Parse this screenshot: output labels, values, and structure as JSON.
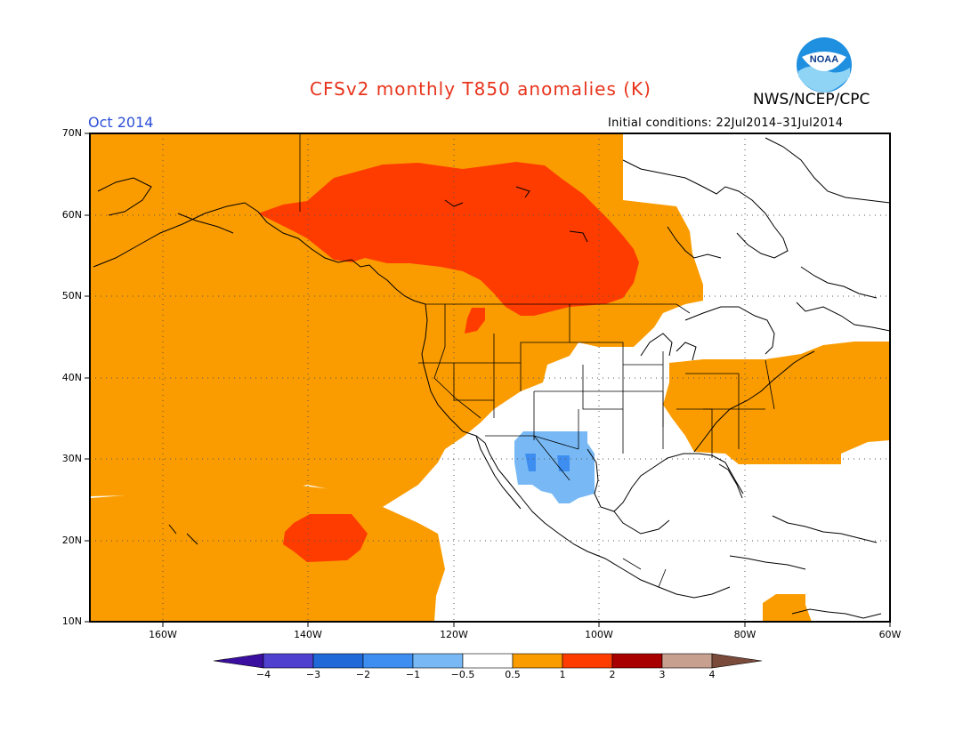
{
  "title": "CFSv2 monthly T850 anomalies (K)",
  "agency": "NWS/NCEP/CPC",
  "logo_text": "NOAA",
  "month": "Oct 2014",
  "initial_conditions": "Initial conditions: 22Jul2014–31Jul2014",
  "lat_labels": [
    "70N",
    "60N",
    "50N",
    "40N",
    "30N",
    "20N",
    "10N"
  ],
  "lon_labels": [
    "160W",
    "140W",
    "120W",
    "100W",
    "80W",
    "60W"
  ],
  "colorbar": {
    "ticks": [
      "−4",
      "−3",
      "−2",
      "−1",
      "−0.5",
      "0.5",
      "1",
      "2",
      "3",
      "4"
    ],
    "colors": [
      "#3a0f9f",
      "#5040d0",
      "#1f6ad8",
      "#3d8ef0",
      "#78b9f5",
      "#ffffff",
      "#fa9c00",
      "#ff3c00",
      "#a80000",
      "#c8a090",
      "#7a4a3a"
    ]
  },
  "map_extent": {
    "lon": [
      -170,
      -60
    ],
    "lat": [
      10,
      70
    ]
  },
  "anomaly_colors": {
    "warm_05_1": "#fa9c00",
    "warm_1_2": "#ff3c00",
    "cool_05_1": "#78b9f5",
    "cool_1_2": "#3d8ef0"
  }
}
